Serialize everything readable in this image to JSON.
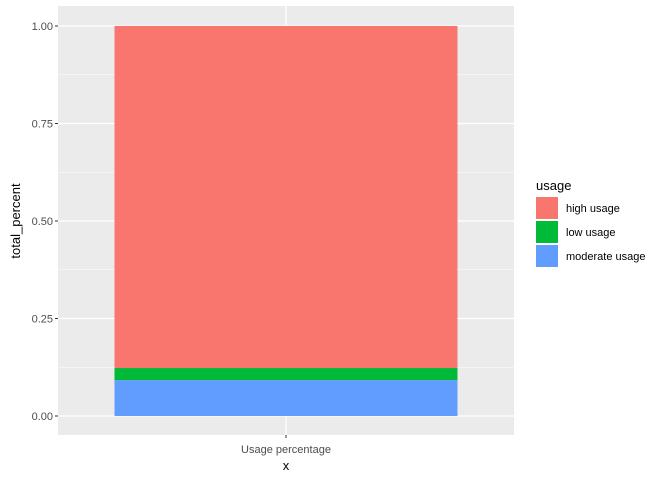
{
  "chart_data": {
    "type": "bar",
    "stacked": true,
    "categories": [
      "Usage percentage"
    ],
    "xlabel": "x",
    "ylabel": "total_percent",
    "ylim": [
      0,
      1
    ],
    "yticks": [
      0,
      0.25,
      0.5,
      0.75,
      1
    ],
    "ytick_labels": [
      "0.00",
      "0.25",
      "0.50",
      "0.75",
      "1.00"
    ],
    "grid": true,
    "legend_position": "right",
    "legend_title": "usage",
    "series": [
      {
        "name": "moderate usage",
        "values": [
          0.092
        ],
        "color": "#619CFF"
      },
      {
        "name": "low usage",
        "values": [
          0.031
        ],
        "color": "#00BA38"
      },
      {
        "name": "high usage",
        "values": [
          0.877
        ],
        "color": "#F8766D"
      }
    ],
    "legend_order": [
      "high usage",
      "low usage",
      "moderate usage"
    ],
    "panel_background": "#EBEBEB",
    "grid_color": "#FFFFFF"
  }
}
